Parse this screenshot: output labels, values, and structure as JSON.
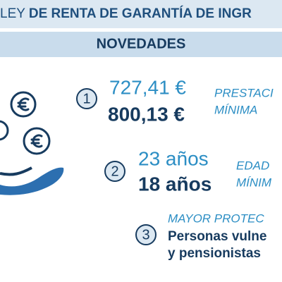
{
  "header": {
    "title_lead": "LEY",
    "title": "DE RENTA DE GARANTÍA DE INGR",
    "banner": "NOVEDADES"
  },
  "items": [
    {
      "number": "1",
      "lines": [
        "727,41 €",
        "800,13 €"
      ],
      "label": [
        "PRESTACI",
        "MÍNIMA"
      ]
    },
    {
      "number": "2",
      "lines": [
        "23 años",
        "18 años"
      ],
      "label": [
        "EDAD",
        "MÍNIM"
      ]
    },
    {
      "number": "3",
      "label": [
        "MAYOR PROTEC"
      ],
      "lines": [
        "Personas vulne",
        "y pensionistas"
      ]
    }
  ]
}
